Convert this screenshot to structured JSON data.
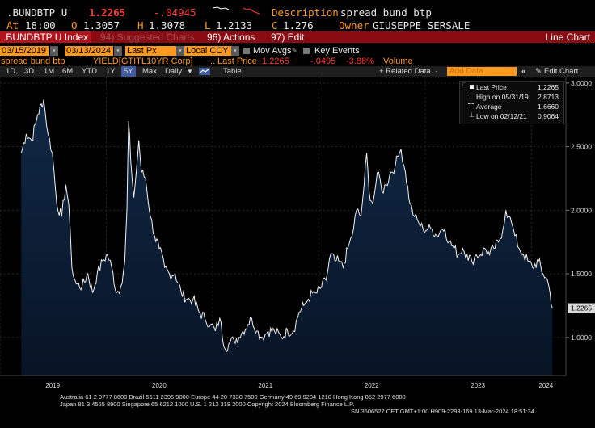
{
  "quote": {
    "ticker": ".BUNDBTP U",
    "last": "1.2265",
    "change": "-.04945",
    "description_label": "Description",
    "description": "spread bund btp",
    "at_label": "At",
    "time": "18:00",
    "open_label": "O",
    "open": "1.3057",
    "high_label": "H",
    "high": "1.3078",
    "low_label": "L",
    "low": "1.2133",
    "close_label": "C",
    "close": "1.276",
    "owner_label": "Owner",
    "owner": "GIUSEPPE SERSALE"
  },
  "menubar": {
    "security": ".BUNDBTP U Index",
    "suggested": "94) Suggested Charts",
    "actions": "96) Actions",
    "edit": "97) Edit",
    "view": "Line Chart"
  },
  "inputs": {
    "start_date": "03/15/2019",
    "end_date": "03/13/2024",
    "price_field": "Last Px",
    "currency": "Local CCY",
    "mov_avgs": "Mov Avgs",
    "key_events": "Key Events"
  },
  "legend_bar": {
    "series_name": "spread bund btp",
    "source": "YIELD[GTITL10YR Corp]",
    "dots": "...",
    "last_price_label": "Last Price",
    "last_price": "1.2265",
    "change": "-.0495",
    "change_pct": "-3.88%",
    "volume": "Volume",
    "add_data_placeholder": "Add Data"
  },
  "period_bar": {
    "periods": [
      "1D",
      "3D",
      "1M",
      "6M",
      "YTD",
      "1Y",
      "5Y",
      "Max"
    ],
    "selected": "5Y",
    "frequency": "Daily",
    "table": "Table",
    "related_data": "+ Related Data",
    "edit_chart": "Edit Chart"
  },
  "stats": {
    "last_price_label": "Last Price",
    "last_price": "1.2265",
    "high_label": "High on 05/31/19",
    "high": "2.8713",
    "average_label": "Average",
    "average": "1.6660",
    "low_label": "Low on 02/12/21",
    "low": "0.9064"
  },
  "colors": {
    "accent": "#ff9a1f",
    "up_down": "#ff3b30",
    "menubar": "#8b0b12",
    "area_fill": "#0c1d35",
    "line": "#ffffff"
  },
  "footer": {
    "line1": "Australia 61 2 9777 8600 Brazil 5511 2395 9000 Europe 44 20 7330 7500 Germany 49 69 9204 1210 Hong Kong 852 2977 6000",
    "line2": "Japan 81 3 4565 8900        Singapore 65 6212 1000        U.S. 1 212 318 2000            Copyright 2024 Bloomberg Finance L.P.",
    "line3": "SN 3506527 CET  GMT+1:00 H909-2293-169 13-Mar-2024 18:51:34"
  },
  "chart_data": {
    "type": "area",
    "title": "",
    "xlabel": "",
    "ylabel": "",
    "ylim": [
      0.7,
      3.05
    ],
    "y_ticks": [
      "1.0000",
      "1.5000",
      "2.0000",
      "2.5000",
      "3.0000"
    ],
    "x_ticks": [
      "2019",
      "2020",
      "2021",
      "2022",
      "2023",
      "2024"
    ],
    "last_value_label": "1.2265",
    "series": [
      {
        "name": "spread bund btp",
        "points": [
          [
            "2019-03-15",
            2.45
          ],
          [
            "2019-04-01",
            2.6
          ],
          [
            "2019-04-20",
            2.55
          ],
          [
            "2019-05-10",
            2.75
          ],
          [
            "2019-05-31",
            2.87
          ],
          [
            "2019-06-15",
            2.6
          ],
          [
            "2019-06-30",
            2.45
          ],
          [
            "2019-07-15",
            2.05
          ],
          [
            "2019-08-01",
            1.95
          ],
          [
            "2019-08-15",
            2.2
          ],
          [
            "2019-08-25",
            2.05
          ],
          [
            "2019-09-05",
            1.55
          ],
          [
            "2019-09-20",
            1.42
          ],
          [
            "2019-10-10",
            1.4
          ],
          [
            "2019-10-30",
            1.5
          ],
          [
            "2019-11-15",
            1.35
          ],
          [
            "2019-12-01",
            1.5
          ],
          [
            "2019-12-20",
            1.6
          ],
          [
            "2020-01-05",
            1.65
          ],
          [
            "2020-01-20",
            1.55
          ],
          [
            "2020-02-05",
            1.35
          ],
          [
            "2020-02-20",
            1.4
          ],
          [
            "2020-03-05",
            1.6
          ],
          [
            "2020-03-12",
            2.0
          ],
          [
            "2020-03-18",
            2.7
          ],
          [
            "2020-03-25",
            2.4
          ],
          [
            "2020-04-05",
            2.1
          ],
          [
            "2020-04-15",
            2.35
          ],
          [
            "2020-04-22",
            2.55
          ],
          [
            "2020-05-01",
            2.3
          ],
          [
            "2020-05-15",
            2.25
          ],
          [
            "2020-06-01",
            1.95
          ],
          [
            "2020-06-15",
            1.8
          ],
          [
            "2020-07-01",
            1.7
          ],
          [
            "2020-07-20",
            1.55
          ],
          [
            "2020-08-05",
            1.5
          ],
          [
            "2020-08-25",
            1.5
          ],
          [
            "2020-09-15",
            1.35
          ],
          [
            "2020-10-05",
            1.3
          ],
          [
            "2020-10-25",
            1.3
          ],
          [
            "2020-11-15",
            1.2
          ],
          [
            "2020-12-05",
            1.15
          ],
          [
            "2020-12-25",
            1.1
          ],
          [
            "2021-01-10",
            1.05
          ],
          [
            "2021-01-25",
            1.15
          ],
          [
            "2021-02-12",
            0.91
          ],
          [
            "2021-02-25",
            0.95
          ],
          [
            "2021-03-15",
            0.98
          ],
          [
            "2021-04-01",
            1.0
          ],
          [
            "2021-04-15",
            1.05
          ],
          [
            "2021-05-01",
            1.1
          ],
          [
            "2021-05-15",
            1.15
          ],
          [
            "2021-06-01",
            1.05
          ],
          [
            "2021-06-20",
            1.0
          ],
          [
            "2021-07-10",
            1.05
          ],
          [
            "2021-08-01",
            1.05
          ],
          [
            "2021-08-25",
            1.0
          ],
          [
            "2021-09-15",
            1.05
          ],
          [
            "2021-10-05",
            1.05
          ],
          [
            "2021-10-25",
            1.2
          ],
          [
            "2021-11-10",
            1.25
          ],
          [
            "2021-11-25",
            1.3
          ],
          [
            "2021-12-10",
            1.35
          ],
          [
            "2021-12-25",
            1.35
          ],
          [
            "2022-01-10",
            1.4
          ],
          [
            "2022-01-25",
            1.45
          ],
          [
            "2022-02-10",
            1.65
          ],
          [
            "2022-02-25",
            1.6
          ],
          [
            "2022-03-10",
            1.6
          ],
          [
            "2022-03-25",
            1.55
          ],
          [
            "2022-04-10",
            1.7
          ],
          [
            "2022-04-25",
            1.8
          ],
          [
            "2022-05-10",
            2.0
          ],
          [
            "2022-05-25",
            1.95
          ],
          [
            "2022-06-05",
            2.2
          ],
          [
            "2022-06-14",
            2.45
          ],
          [
            "2022-06-22",
            2.15
          ],
          [
            "2022-07-05",
            2.05
          ],
          [
            "2022-07-15",
            2.2
          ],
          [
            "2022-07-25",
            2.3
          ],
          [
            "2022-08-05",
            2.15
          ],
          [
            "2022-08-20",
            2.2
          ],
          [
            "2022-09-05",
            2.3
          ],
          [
            "2022-09-20",
            2.35
          ],
          [
            "2022-09-30",
            2.42
          ],
          [
            "2022-10-10",
            2.48
          ],
          [
            "2022-10-25",
            2.3
          ],
          [
            "2022-11-10",
            2.05
          ],
          [
            "2022-11-25",
            1.95
          ],
          [
            "2022-12-10",
            1.9
          ],
          [
            "2022-12-25",
            1.85
          ],
          [
            "2023-01-10",
            1.85
          ],
          [
            "2023-01-25",
            1.85
          ],
          [
            "2023-02-10",
            1.8
          ],
          [
            "2023-02-25",
            1.85
          ],
          [
            "2023-03-10",
            1.85
          ],
          [
            "2023-03-25",
            1.75
          ],
          [
            "2023-04-10",
            1.7
          ],
          [
            "2023-04-25",
            1.65
          ],
          [
            "2023-05-10",
            1.7
          ],
          [
            "2023-05-25",
            1.65
          ],
          [
            "2023-06-10",
            1.6
          ],
          [
            "2023-06-25",
            1.65
          ],
          [
            "2023-07-10",
            1.65
          ],
          [
            "2023-07-25",
            1.7
          ],
          [
            "2023-08-10",
            1.65
          ],
          [
            "2023-08-25",
            1.7
          ],
          [
            "2023-09-10",
            1.75
          ],
          [
            "2023-09-25",
            1.85
          ],
          [
            "2023-10-05",
            2.0
          ],
          [
            "2023-10-15",
            1.95
          ],
          [
            "2023-10-25",
            1.9
          ],
          [
            "2023-11-05",
            1.8
          ],
          [
            "2023-11-20",
            1.7
          ],
          [
            "2023-12-05",
            1.65
          ],
          [
            "2023-12-20",
            1.6
          ],
          [
            "2024-01-05",
            1.55
          ],
          [
            "2024-01-25",
            1.6
          ],
          [
            "2024-02-10",
            1.5
          ],
          [
            "2024-02-25",
            1.45
          ],
          [
            "2024-03-05",
            1.35
          ],
          [
            "2024-03-13",
            1.23
          ]
        ]
      }
    ]
  }
}
